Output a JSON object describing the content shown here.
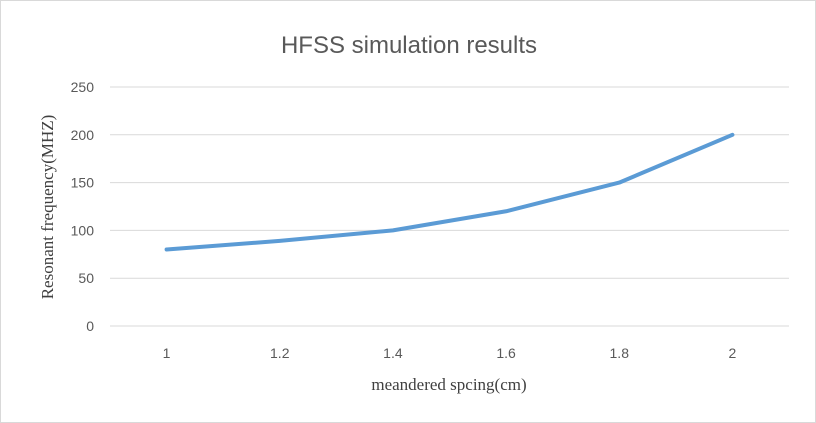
{
  "chart_data": {
    "type": "line",
    "title": "HFSS simulation results",
    "xlabel": "meandered spcing(cm)",
    "ylabel": "Resonant frequency(MHZ)",
    "x_ticks": [
      "1",
      "1.2",
      "1.4",
      "1.6",
      "1.8",
      "2"
    ],
    "y_ticks": [
      "0",
      "50",
      "100",
      "150",
      "200",
      "250"
    ],
    "x": [
      1,
      1.2,
      1.4,
      1.6,
      1.8,
      2
    ],
    "ylim": [
      0,
      250
    ],
    "grid": true,
    "legend": "none",
    "series": [
      {
        "values": [
          80,
          89,
          100,
          120,
          150,
          200
        ],
        "color": "#5b9bd5"
      }
    ]
  }
}
